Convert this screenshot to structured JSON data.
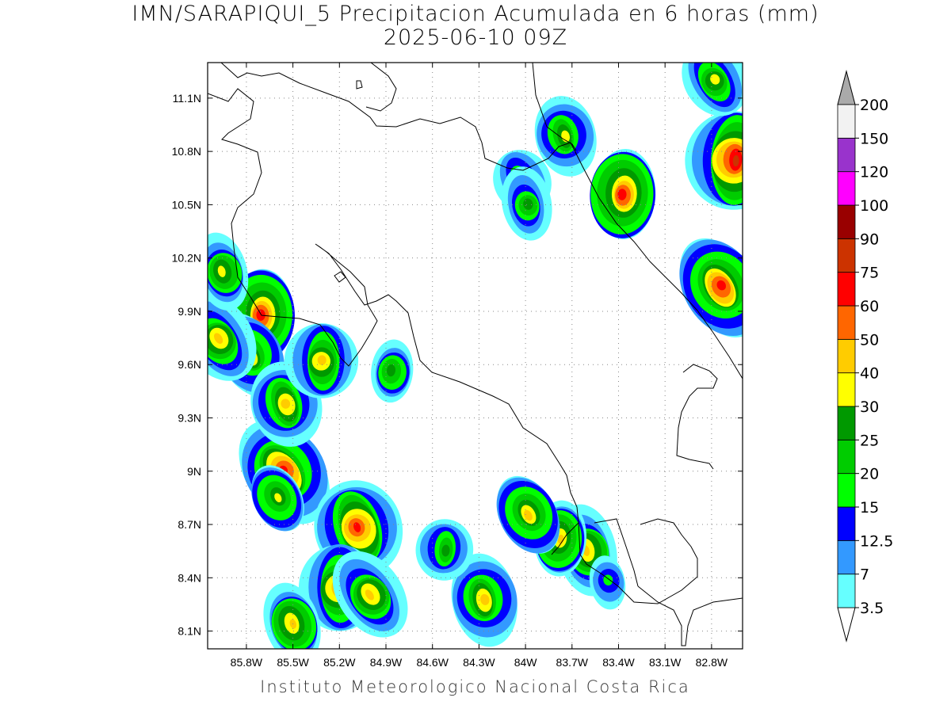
{
  "title_line1": "IMN/SARAPIQUI_5 Precipitacion Acumulada en 6 horas (mm)",
  "title_line2": "2025-06-10 09Z",
  "footer": "Instituto Meteorologico Nacional Costa Rica",
  "lat_ticks": [
    "11.1N",
    "10.8N",
    "10.5N",
    "10.2N",
    "9.9N",
    "9.6N",
    "9.3N",
    "9N",
    "8.7N",
    "8.4N",
    "8.1N"
  ],
  "lon_ticks": [
    "85.8W",
    "85.5W",
    "85.2W",
    "84.9W",
    "84.6W",
    "84.3W",
    "84W",
    "83.7W",
    "83.4W",
    "83.1W",
    "82.8W"
  ],
  "colorbar": {
    "levels": [
      "3.5",
      "7",
      "12.5",
      "15",
      "20",
      "25",
      "30",
      "40",
      "50",
      "60",
      "75",
      "90",
      "100",
      "120",
      "150",
      "200"
    ],
    "colors": [
      "#66ffff",
      "#3399ff",
      "#0000ff",
      "#00ff00",
      "#00cc00",
      "#009900",
      "#ffff00",
      "#ffcc00",
      "#ff6600",
      "#ff0000",
      "#cc3300",
      "#990000",
      "#ff00ff",
      "#9933cc",
      "#f2f2f2",
      "#aaaaaa"
    ]
  },
  "rain_cells": [
    {
      "lon": -85.56,
      "lat": 9.0,
      "peak": 60
    },
    {
      "lon": -85.08,
      "lat": 8.68,
      "peak": 60
    },
    {
      "lon": -85.2,
      "lat": 8.34,
      "peak": 50
    },
    {
      "lon": -85.0,
      "lat": 8.3,
      "peak": 40
    },
    {
      "lon": -85.5,
      "lat": 8.14,
      "peak": 40
    },
    {
      "lon": -85.7,
      "lat": 9.88,
      "peak": 60
    },
    {
      "lon": -85.78,
      "lat": 9.66,
      "peak": 40
    },
    {
      "lon": -85.55,
      "lat": 9.38,
      "peak": 40
    },
    {
      "lon": -85.31,
      "lat": 9.62,
      "peak": 40
    },
    {
      "lon": -85.98,
      "lat": 9.74,
      "peak": 40
    },
    {
      "lon": -85.95,
      "lat": 10.12,
      "peak": 30
    },
    {
      "lon": -83.37,
      "lat": 10.56,
      "peak": 60
    },
    {
      "lon": -82.74,
      "lat": 10.04,
      "peak": 60
    },
    {
      "lon": -83.75,
      "lat": 10.89,
      "peak": 30
    },
    {
      "lon": -82.65,
      "lat": 10.75,
      "peak": 75
    },
    {
      "lon": -82.78,
      "lat": 11.2,
      "peak": 30
    },
    {
      "lon": -83.6,
      "lat": 8.55,
      "peak": 40
    },
    {
      "lon": -83.78,
      "lat": 8.62,
      "peak": 40
    },
    {
      "lon": -83.98,
      "lat": 8.76,
      "peak": 40
    },
    {
      "lon": -84.27,
      "lat": 8.28,
      "peak": 40
    },
    {
      "lon": -84.52,
      "lat": 8.56,
      "peak": 25
    },
    {
      "lon": -84.02,
      "lat": 10.63,
      "peak": 25
    },
    {
      "lon": -83.99,
      "lat": 10.5,
      "peak": 25
    },
    {
      "lon": -84.86,
      "lat": 9.56,
      "peak": 25
    },
    {
      "lon": -85.6,
      "lat": 8.85,
      "peak": 30
    },
    {
      "lon": -83.47,
      "lat": 8.38,
      "peak": 15
    }
  ]
}
